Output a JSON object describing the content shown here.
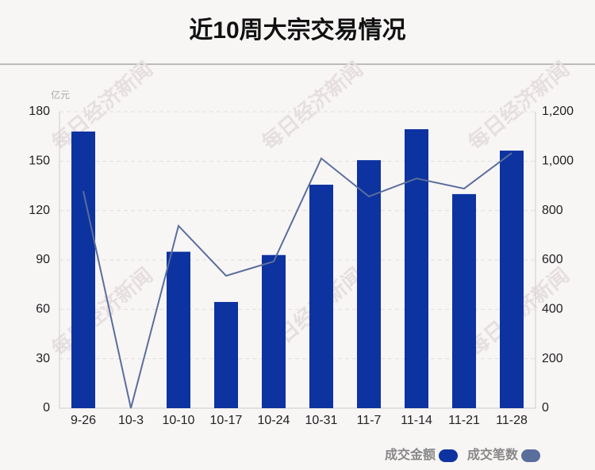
{
  "chart_data": {
    "type": "bar",
    "title": "近10周大宗交易情况",
    "y_unit": "亿元",
    "watermark": "每日经济新闻",
    "categories": [
      "9-26",
      "10-3",
      "10-10",
      "10-17",
      "10-24",
      "10-31",
      "11-7",
      "11-14",
      "11-21",
      "11-28"
    ],
    "series": [
      {
        "name": "成交金额",
        "type": "bar",
        "color": "#0d33a0",
        "values": [
          168,
          0,
          95,
          64.5,
          93,
          135.7,
          150.6,
          169.4,
          130,
          156.4
        ]
      },
      {
        "name": "成交笔数",
        "type": "line",
        "axis": "y2",
        "color": "#5a6e9c",
        "values": [
          879,
          0,
          738,
          536,
          594,
          1011,
          857,
          930,
          889,
          1033
        ]
      }
    ],
    "ylim": [
      0,
      180
    ],
    "yticks": [
      0,
      30,
      60,
      90,
      120,
      150,
      180
    ],
    "y2lim": [
      0,
      1200
    ],
    "y2ticks": [
      0,
      200,
      400,
      600,
      800,
      {
        "value": 1000,
        "label": "1,000"
      },
      {
        "value": 1200,
        "label": "1,200"
      }
    ],
    "grid": true
  }
}
